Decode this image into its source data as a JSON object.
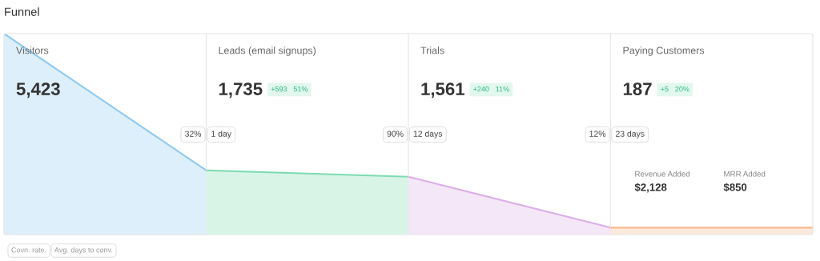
{
  "chart_data": {
    "type": "other",
    "title": "Funnel",
    "categories": [
      "Visitors",
      "Leads (email signups)",
      "Trials",
      "Paying Customers"
    ],
    "values": [
      5423,
      1735,
      1561,
      187
    ],
    "value_labels": [
      "5,423",
      "1,735",
      "1,561",
      "187"
    ],
    "colors": [
      "#8ec9f0",
      "#7ddbb0",
      "#dcaee6",
      "#f6b98a"
    ],
    "annotations": [
      "+593",
      "51%",
      "+240",
      "11%",
      "+5",
      "20%",
      "32%",
      "1 day",
      "90%",
      "12 days",
      "12%",
      "23 days",
      "Revenue Added",
      "$2,128",
      "MRR Added",
      "$850",
      "Covn. rate.",
      "Avg. days to conv."
    ]
  }
}
